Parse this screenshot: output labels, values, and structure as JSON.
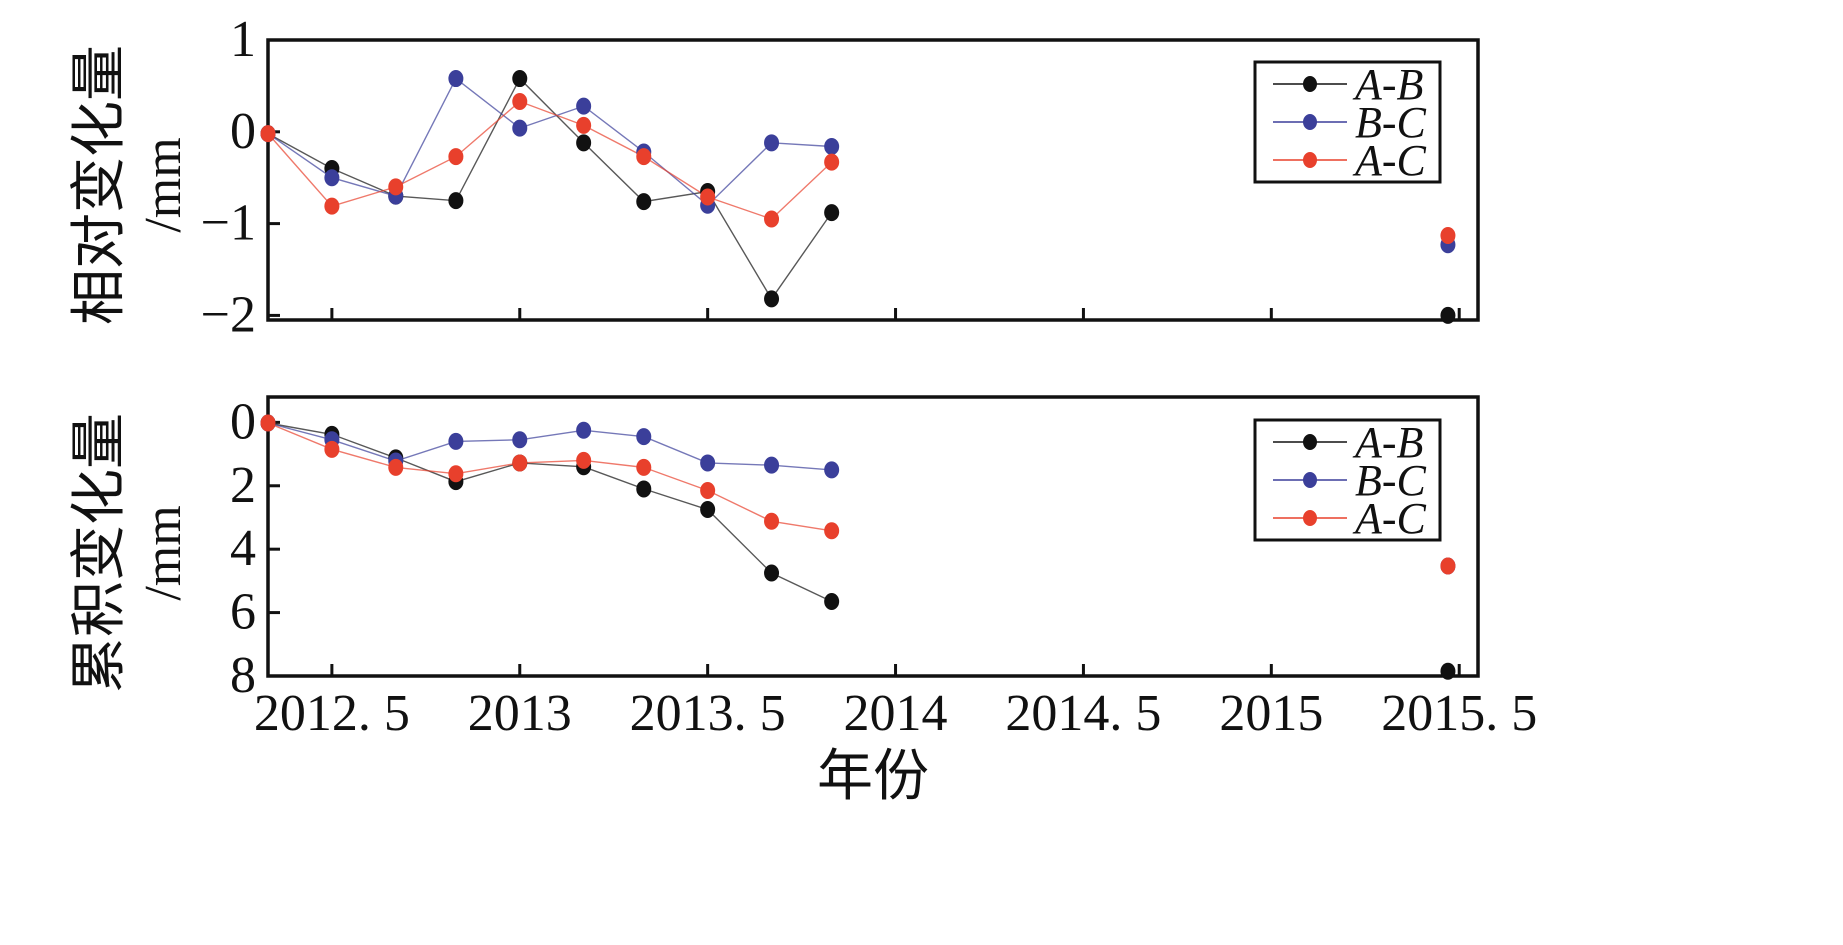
{
  "x_axis_title": "年份",
  "colors": {
    "A-B": "#111111",
    "B-C": "#3b3f9a",
    "A-C": "#e8402c"
  },
  "chart_data": [
    {
      "type": "line",
      "ylabel": "相对变化量",
      "yunit": "/mm",
      "xlim": [
        2012.33,
        2015.55
      ],
      "ylim": [
        -2.05,
        1.0
      ],
      "y_inverted": false,
      "yticks": [
        1,
        0,
        -1,
        -2
      ],
      "ytick_labels": [
        "1",
        "0",
        "−1",
        "−2"
      ],
      "xticks": [
        2012.5,
        2013,
        2013.5,
        2014,
        2014.5,
        2015,
        2015.5
      ],
      "legend_position": "top-right",
      "series": [
        {
          "name": "A-B",
          "x": [
            2012.33,
            2012.5,
            2012.67,
            2012.83,
            2013.0,
            2013.17,
            2013.33,
            2013.5,
            2013.67,
            2013.83
          ],
          "y": [
            -0.02,
            -0.4,
            -0.7,
            -0.75,
            0.58,
            -0.12,
            -0.76,
            -0.65,
            -1.82,
            -0.88
          ],
          "isolated": {
            "x": 2015.47,
            "y": -2.0
          }
        },
        {
          "name": "B-C",
          "x": [
            2012.33,
            2012.5,
            2012.67,
            2012.83,
            2013.0,
            2013.17,
            2013.33,
            2013.5,
            2013.67,
            2013.83
          ],
          "y": [
            -0.02,
            -0.5,
            -0.7,
            0.58,
            0.04,
            0.28,
            -0.22,
            -0.8,
            -0.12,
            -0.16
          ],
          "isolated": {
            "x": 2015.47,
            "y": -1.23
          }
        },
        {
          "name": "A-C",
          "x": [
            2012.33,
            2012.5,
            2012.67,
            2012.83,
            2013.0,
            2013.17,
            2013.33,
            2013.5,
            2013.67,
            2013.83
          ],
          "y": [
            -0.02,
            -0.81,
            -0.6,
            -0.27,
            0.33,
            0.07,
            -0.27,
            -0.71,
            -0.95,
            -0.33
          ],
          "isolated": {
            "x": 2015.47,
            "y": -1.13
          }
        }
      ]
    },
    {
      "type": "line",
      "ylabel": "累积变化量",
      "yunit": "/mm",
      "xlim": [
        2012.33,
        2015.55
      ],
      "ylim": [
        -0.8,
        8.0
      ],
      "y_inverted": true,
      "yticks": [
        0,
        2,
        4,
        6,
        8
      ],
      "ytick_labels": [
        "0",
        "2",
        "4",
        "6",
        "8"
      ],
      "xticks": [
        2012.5,
        2013,
        2013.5,
        2014,
        2014.5,
        2015,
        2015.5
      ],
      "xtick_labels": [
        "2012. 5",
        "2013",
        "2013. 5",
        "2014",
        "2014. 5",
        "2015",
        "2015. 5"
      ],
      "legend_position": "top-right",
      "series": [
        {
          "name": "A-B",
          "x": [
            2012.33,
            2012.5,
            2012.67,
            2012.83,
            2013.0,
            2013.17,
            2013.33,
            2013.5,
            2013.67,
            2013.83
          ],
          "y": [
            0.02,
            0.38,
            1.12,
            1.87,
            1.28,
            1.4,
            2.1,
            2.75,
            4.75,
            5.65
          ],
          "isolated": {
            "x": 2015.47,
            "y": 7.85
          }
        },
        {
          "name": "B-C",
          "x": [
            2012.33,
            2012.5,
            2012.67,
            2012.83,
            2013.0,
            2013.17,
            2013.33,
            2013.5,
            2013.67,
            2013.83
          ],
          "y": [
            0.02,
            0.55,
            1.22,
            0.6,
            0.55,
            0.25,
            0.45,
            1.28,
            1.35,
            1.5
          ],
          "isolated": {
            "x": 2015.47,
            "y": 4.53
          }
        },
        {
          "name": "A-C",
          "x": [
            2012.33,
            2012.5,
            2012.67,
            2012.83,
            2013.0,
            2013.17,
            2013.33,
            2013.5,
            2013.67,
            2013.83
          ],
          "y": [
            0.02,
            0.85,
            1.42,
            1.62,
            1.28,
            1.2,
            1.42,
            2.15,
            3.12,
            3.42
          ],
          "isolated": {
            "x": 2015.47,
            "y": 4.53
          }
        }
      ]
    }
  ]
}
